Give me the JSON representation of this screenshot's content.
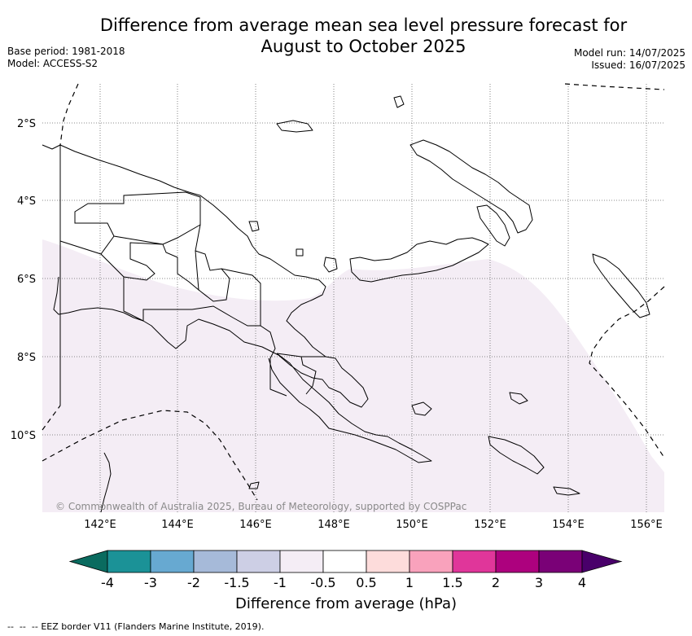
{
  "header": {
    "title_line1": "Difference from average mean sea level pressure forecast for",
    "title_line2": "August to October 2025",
    "base_period": "Base period: 1981-2018",
    "model": "Model: ACCESS-S2",
    "model_run": "Model run: 14/07/2025",
    "issued": "Issued: 16/07/2025"
  },
  "map": {
    "lat_labels": [
      "2°S",
      "4°S",
      "6°S",
      "8°S",
      "10°S"
    ],
    "lon_labels": [
      "142°E",
      "144°E",
      "146°E",
      "148°E",
      "150°E",
      "152°E",
      "154°E",
      "156°E"
    ],
    "copyright": "© Commonwealth of Australia 2025, Bureau of Meteorology, supported by COSPPac",
    "shaded_category": "-1 to -0.5",
    "colors": {
      "shade": "#f4edf5",
      "land_border": "#000000",
      "grid": "#666666"
    }
  },
  "colorbar": {
    "ticks": [
      "-4",
      "-3",
      "-2",
      "-1.5",
      "-1",
      "-0.5",
      "0.5",
      "1",
      "1.5",
      "2",
      "3",
      "4"
    ],
    "colors": [
      "#0a6b5f",
      "#1b9297",
      "#67a9d1",
      "#a6bad9",
      "#cdcfe5",
      "#f4edf5",
      "#ffffff",
      "#fddcdb",
      "#f9a2bc",
      "#e0369a",
      "#ad017e",
      "#7a0177",
      "#49006a"
    ],
    "label": "Difference from average (hPa)"
  },
  "legend": {
    "eez_label": "EEZ border V11 (Flanders Marine Institute, 2019)."
  }
}
